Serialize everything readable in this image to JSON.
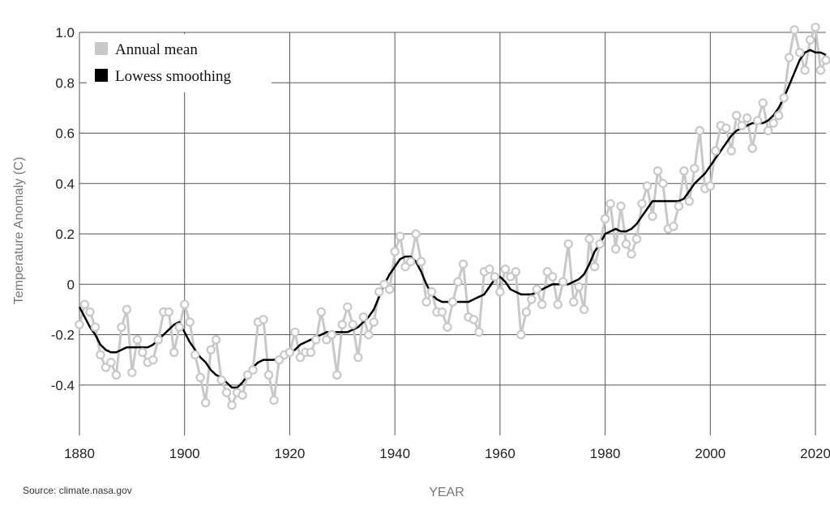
{
  "chart_data": {
    "type": "line",
    "xlabel": "YEAR",
    "ylabel": "Temperature Anomaly (C)",
    "xlim": [
      1880,
      2022
    ],
    "ylim": [
      -0.6,
      1.0
    ],
    "xticks": [
      1880,
      1900,
      1920,
      1940,
      1960,
      1980,
      2000,
      2020
    ],
    "yticks": [
      -0.4,
      -0.2,
      0,
      0.2,
      0.4,
      0.6,
      0.8,
      1.0
    ],
    "ytick_labels": [
      "-0.4",
      "-0.2",
      "0",
      "0.2",
      "0.4",
      "0.6",
      "0.8",
      "1.0"
    ],
    "grid": true,
    "legend": "top-left",
    "series": [
      {
        "name": "Annual mean",
        "color": "#c8c8c8",
        "marker": "circle",
        "x": [
          1880,
          1881,
          1882,
          1883,
          1884,
          1885,
          1886,
          1887,
          1888,
          1889,
          1890,
          1891,
          1892,
          1893,
          1894,
          1895,
          1896,
          1897,
          1898,
          1899,
          1900,
          1901,
          1902,
          1903,
          1904,
          1905,
          1906,
          1907,
          1908,
          1909,
          1910,
          1911,
          1912,
          1913,
          1914,
          1915,
          1916,
          1917,
          1918,
          1919,
          1920,
          1921,
          1922,
          1923,
          1924,
          1925,
          1926,
          1927,
          1928,
          1929,
          1930,
          1931,
          1932,
          1933,
          1934,
          1935,
          1936,
          1937,
          1938,
          1939,
          1940,
          1941,
          1942,
          1943,
          1944,
          1945,
          1946,
          1947,
          1948,
          1949,
          1950,
          1951,
          1952,
          1953,
          1954,
          1955,
          1956,
          1957,
          1958,
          1959,
          1960,
          1961,
          1962,
          1963,
          1964,
          1965,
          1966,
          1967,
          1968,
          1969,
          1970,
          1971,
          1972,
          1973,
          1974,
          1975,
          1976,
          1977,
          1978,
          1979,
          1980,
          1981,
          1982,
          1983,
          1984,
          1985,
          1986,
          1987,
          1988,
          1989,
          1990,
          1991,
          1992,
          1993,
          1994,
          1995,
          1996,
          1997,
          1998,
          1999,
          2000,
          2001,
          2002,
          2003,
          2004,
          2005,
          2006,
          2007,
          2008,
          2009,
          2010,
          2011,
          2012,
          2013,
          2014,
          2015,
          2016,
          2017,
          2018,
          2019,
          2020,
          2021,
          2022
        ],
        "values": [
          -0.16,
          -0.08,
          -0.11,
          -0.17,
          -0.28,
          -0.33,
          -0.31,
          -0.36,
          -0.17,
          -0.1,
          -0.35,
          -0.22,
          -0.27,
          -0.31,
          -0.3,
          -0.22,
          -0.11,
          -0.11,
          -0.27,
          -0.17,
          -0.08,
          -0.15,
          -0.28,
          -0.37,
          -0.47,
          -0.26,
          -0.22,
          -0.38,
          -0.43,
          -0.48,
          -0.43,
          -0.44,
          -0.36,
          -0.34,
          -0.15,
          -0.14,
          -0.36,
          -0.46,
          -0.3,
          -0.28,
          -0.27,
          -0.19,
          -0.29,
          -0.27,
          -0.27,
          -0.22,
          -0.11,
          -0.22,
          -0.2,
          -0.36,
          -0.16,
          -0.09,
          -0.16,
          -0.29,
          -0.13,
          -0.2,
          -0.15,
          -0.03,
          0.0,
          -0.02,
          0.13,
          0.19,
          0.07,
          0.09,
          0.2,
          0.09,
          -0.07,
          -0.03,
          -0.11,
          -0.11,
          -0.17,
          -0.07,
          0.01,
          0.08,
          -0.13,
          -0.14,
          -0.19,
          0.05,
          0.06,
          0.03,
          -0.03,
          0.06,
          0.03,
          0.05,
          -0.2,
          -0.11,
          -0.06,
          -0.02,
          -0.08,
          0.05,
          0.03,
          -0.08,
          0.01,
          0.16,
          -0.07,
          -0.01,
          -0.1,
          0.18,
          0.07,
          0.16,
          0.26,
          0.32,
          0.14,
          0.31,
          0.16,
          0.12,
          0.18,
          0.32,
          0.39,
          0.27,
          0.45,
          0.4,
          0.22,
          0.23,
          0.31,
          0.45,
          0.33,
          0.46,
          0.61,
          0.38,
          0.39,
          0.53,
          0.63,
          0.62,
          0.53,
          0.67,
          0.63,
          0.66,
          0.54,
          0.65,
          0.72,
          0.61,
          0.64,
          0.67,
          0.74,
          0.9,
          1.01,
          0.92,
          0.85,
          0.97,
          1.02,
          0.85,
          0.89
        ]
      },
      {
        "name": "Lowess smoothing",
        "color": "#000000",
        "x": [
          1880,
          1881,
          1882,
          1883,
          1884,
          1885,
          1886,
          1887,
          1888,
          1889,
          1890,
          1891,
          1892,
          1893,
          1894,
          1895,
          1896,
          1897,
          1898,
          1899,
          1900,
          1901,
          1902,
          1903,
          1904,
          1905,
          1906,
          1907,
          1908,
          1909,
          1910,
          1911,
          1912,
          1913,
          1914,
          1915,
          1916,
          1917,
          1918,
          1919,
          1920,
          1921,
          1922,
          1923,
          1924,
          1925,
          1926,
          1927,
          1928,
          1929,
          1930,
          1931,
          1932,
          1933,
          1934,
          1935,
          1936,
          1937,
          1938,
          1939,
          1940,
          1941,
          1942,
          1943,
          1944,
          1945,
          1946,
          1947,
          1948,
          1949,
          1950,
          1951,
          1952,
          1953,
          1954,
          1955,
          1956,
          1957,
          1958,
          1959,
          1960,
          1961,
          1962,
          1963,
          1964,
          1965,
          1966,
          1967,
          1968,
          1969,
          1970,
          1971,
          1972,
          1973,
          1974,
          1975,
          1976,
          1977,
          1978,
          1979,
          1980,
          1981,
          1982,
          1983,
          1984,
          1985,
          1986,
          1987,
          1988,
          1989,
          1990,
          1991,
          1992,
          1993,
          1994,
          1995,
          1996,
          1997,
          1998,
          1999,
          2000,
          2001,
          2002,
          2003,
          2004,
          2005,
          2006,
          2007,
          2008,
          2009,
          2010,
          2011,
          2012,
          2013,
          2014,
          2015,
          2016,
          2017,
          2018,
          2019,
          2020,
          2021,
          2022
        ],
        "values": [
          -0.09,
          -0.13,
          -0.17,
          -0.2,
          -0.24,
          -0.26,
          -0.27,
          -0.27,
          -0.26,
          -0.25,
          -0.25,
          -0.25,
          -0.25,
          -0.25,
          -0.24,
          -0.22,
          -0.2,
          -0.18,
          -0.16,
          -0.15,
          -0.19,
          -0.23,
          -0.26,
          -0.29,
          -0.31,
          -0.34,
          -0.36,
          -0.37,
          -0.39,
          -0.41,
          -0.41,
          -0.39,
          -0.36,
          -0.33,
          -0.31,
          -0.3,
          -0.3,
          -0.3,
          -0.29,
          -0.28,
          -0.27,
          -0.26,
          -0.24,
          -0.23,
          -0.22,
          -0.21,
          -0.2,
          -0.19,
          -0.19,
          -0.19,
          -0.19,
          -0.19,
          -0.18,
          -0.17,
          -0.15,
          -0.13,
          -0.1,
          -0.05,
          0.0,
          0.04,
          0.07,
          0.1,
          0.11,
          0.11,
          0.09,
          0.05,
          0.0,
          -0.04,
          -0.06,
          -0.07,
          -0.07,
          -0.07,
          -0.07,
          -0.07,
          -0.07,
          -0.06,
          -0.05,
          -0.04,
          -0.01,
          0.02,
          0.03,
          0.01,
          -0.02,
          -0.03,
          -0.04,
          -0.04,
          -0.04,
          -0.03,
          -0.02,
          -0.01,
          0.0,
          0.0,
          0.0,
          0.0,
          0.01,
          0.02,
          0.04,
          0.08,
          0.13,
          0.16,
          0.2,
          0.21,
          0.22,
          0.21,
          0.21,
          0.22,
          0.24,
          0.27,
          0.3,
          0.33,
          0.33,
          0.33,
          0.33,
          0.33,
          0.33,
          0.34,
          0.37,
          0.4,
          0.42,
          0.44,
          0.47,
          0.5,
          0.53,
          0.56,
          0.59,
          0.61,
          0.62,
          0.63,
          0.64,
          0.64,
          0.64,
          0.65,
          0.67,
          0.7,
          0.74,
          0.79,
          0.84,
          0.89,
          0.92,
          0.93,
          0.92,
          0.92,
          0.91
        ]
      }
    ]
  },
  "source": "Source: climate.nasa.gov"
}
